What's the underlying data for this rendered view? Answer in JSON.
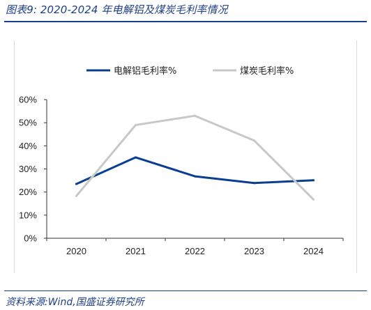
{
  "header": {
    "title": "图表9:  2020-2024 年电解铝及煤炭毛利率情况"
  },
  "footer": {
    "source": "资料来源:Wind,国盛证券研究所"
  },
  "chart_data": {
    "type": "line",
    "title": "",
    "xlabel": "",
    "ylabel": "",
    "x": [
      "2020",
      "2021",
      "2022",
      "2023",
      "2024"
    ],
    "ylim": [
      0,
      60
    ],
    "yticks": [
      "0%",
      "10%",
      "20%",
      "30%",
      "40%",
      "50%",
      "60%"
    ],
    "grid": false,
    "legend_position": "top",
    "series": [
      {
        "name": "电解铝毛利率%",
        "color": "#0a3e91",
        "values": [
          23.5,
          35,
          26.8,
          23.9,
          25.1
        ]
      },
      {
        "name": "煤炭毛利率%",
        "color": "#c8c8c8",
        "values": [
          18.3,
          49,
          53,
          42.3,
          16.8
        ]
      }
    ]
  }
}
